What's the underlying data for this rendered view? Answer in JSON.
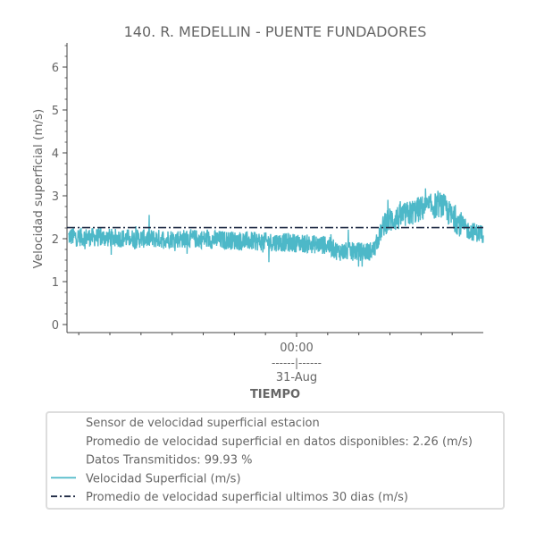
{
  "chart_data": {
    "type": "line",
    "title": "140. R. MEDELLIN - PUENTE FUNDADORES",
    "xlabel": "TIEMPO",
    "ylabel": "Velocidad superficial (m/s)",
    "ylim": [
      0,
      6.5
    ],
    "yticks": [
      0,
      1,
      2,
      3,
      4,
      5,
      6
    ],
    "xrange_hours": [
      -44,
      36
    ],
    "xtick_label": {
      "hour": "00:00",
      "separator": "------|------",
      "date": "31-Aug"
    },
    "xtick_position_hours": 0,
    "grid": false,
    "legend_position": "bottom",
    "series": [
      {
        "name": "Velocidad Superficial (m/s)",
        "color": "#4db8c8",
        "style": "solid",
        "profile": [
          {
            "x": -44,
            "y": 2.05
          },
          {
            "x": -30,
            "y": 2.0
          },
          {
            "x": -20,
            "y": 2.0
          },
          {
            "x": -10,
            "y": 1.95
          },
          {
            "x": 0,
            "y": 1.9
          },
          {
            "x": 6,
            "y": 1.85
          },
          {
            "x": 8,
            "y": 1.7
          },
          {
            "x": 14,
            "y": 1.7
          },
          {
            "x": 15,
            "y": 1.75
          },
          {
            "x": 17,
            "y": 2.4
          },
          {
            "x": 20,
            "y": 2.5
          },
          {
            "x": 24,
            "y": 2.7
          },
          {
            "x": 28,
            "y": 2.8
          },
          {
            "x": 30,
            "y": 2.5
          },
          {
            "x": 33,
            "y": 2.2
          },
          {
            "x": 36,
            "y": 2.1
          }
        ],
        "noise_amplitude": 0.22,
        "ymax": 3.2,
        "ymin": 1.35
      },
      {
        "name": "Promedio de velocidad superficial ultimos 30 dias (m/s)",
        "color": "#1f2a44",
        "style": "dashdot",
        "values": [
          2.26
        ]
      }
    ],
    "legend_entries": [
      {
        "label": "Sensor de velocidad superficial estacion",
        "marker": "none"
      },
      {
        "label": "Promedio de velocidad superficial en datos disponibles: 2.26 (m/s)",
        "marker": "none"
      },
      {
        "label": "Datos Transmitidos: 99.93 %",
        "marker": "none"
      },
      {
        "label": "Velocidad Superficial (m/s)",
        "marker": "solid",
        "color": "#4db8c8"
      },
      {
        "label": "Promedio de velocidad superficial ultimos 30 dias (m/s)",
        "marker": "dashdot",
        "color": "#1f2a44"
      }
    ]
  }
}
